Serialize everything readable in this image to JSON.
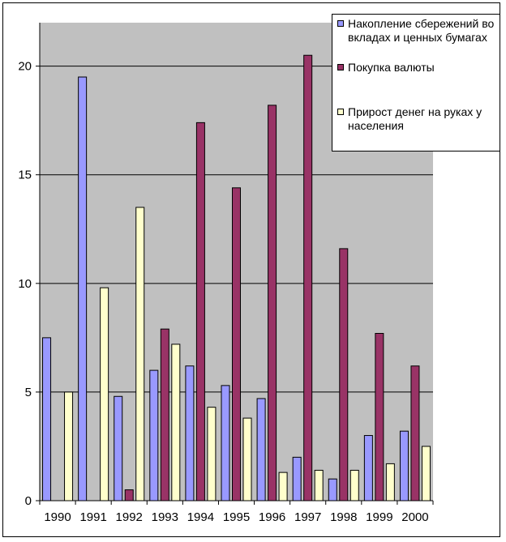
{
  "chart_data": {
    "type": "bar",
    "title": "",
    "xlabel": "",
    "ylabel": "",
    "ylim": [
      0,
      22
    ],
    "yticks": [
      0,
      5,
      10,
      15,
      20
    ],
    "grid": true,
    "legend_position": "top-right",
    "categories": [
      "1990",
      "1991",
      "1992",
      "1993",
      "1994",
      "1995",
      "1996",
      "1997",
      "1998",
      "1999",
      "2000"
    ],
    "series": [
      {
        "name": "Накопление сбережений во вкладах и ценных бумагах",
        "color": "#9999ff",
        "values": [
          7.5,
          19.5,
          4.8,
          6.0,
          6.2,
          5.3,
          4.7,
          2.0,
          1.0,
          3.0,
          3.2
        ]
      },
      {
        "name": "Покупка валюты",
        "color": "#993366",
        "values": [
          0,
          0,
          0.5,
          7.9,
          17.4,
          14.4,
          18.2,
          20.5,
          11.6,
          7.7,
          6.2
        ]
      },
      {
        "name": "Прирост денег на руках у населения",
        "color": "#ffffcc",
        "values": [
          5.0,
          9.8,
          13.5,
          7.2,
          4.3,
          3.8,
          1.3,
          1.4,
          1.4,
          1.7,
          2.5
        ]
      }
    ],
    "colors": {
      "plot_background": "#c0c0c0",
      "gridline": "#000000"
    }
  }
}
